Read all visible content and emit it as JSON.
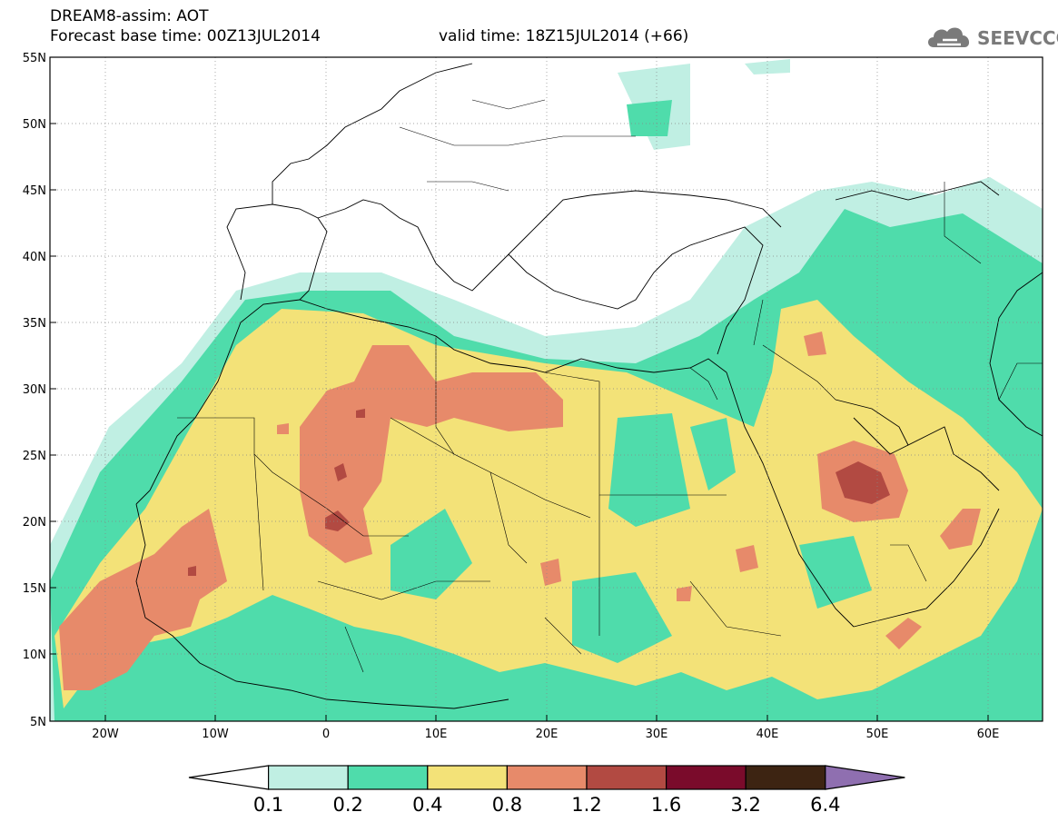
{
  "header": {
    "line1": "DREAM8-assim: AOT",
    "line2": "Forecast base time: 00Z13JUL2014",
    "line3": "valid time: 18Z15JUL2014 (+66)"
  },
  "logo": {
    "text": "SEEVCCC",
    "icon": "cloud-icon",
    "color": "#7a7a7a"
  },
  "map": {
    "lon_range": [
      -25,
      65
    ],
    "lat_range": [
      5,
      55
    ],
    "lat_labels": [
      "55N",
      "50N",
      "45N",
      "40N",
      "35N",
      "30N",
      "25N",
      "20N",
      "15N",
      "10N",
      "5N"
    ],
    "lon_labels": [
      "20W",
      "10W",
      "0",
      "10E",
      "20E",
      "30E",
      "40E",
      "50E",
      "60E"
    ],
    "grid": true
  },
  "colorbar": {
    "colors": [
      "#ffffff",
      "#c0efe3",
      "#4fdcab",
      "#f3e278",
      "#e78a6a",
      "#b24a42",
      "#7a0b2b",
      "#3d2412",
      "#8f6fb0"
    ],
    "labels": [
      "0.1",
      "0.2",
      "0.4",
      "0.8",
      "1.2",
      "1.6",
      "3.2",
      "6.4"
    ]
  }
}
